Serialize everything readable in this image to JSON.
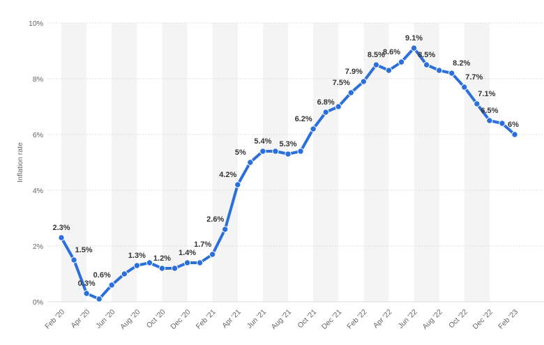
{
  "chart_data": {
    "type": "line",
    "ylabel": "Inflation rate",
    "xlabel": "",
    "ylim": [
      0,
      10
    ],
    "y_ticks": [
      0,
      2,
      4,
      6,
      8,
      10
    ],
    "y_tick_labels": [
      "0%",
      "2%",
      "4%",
      "6%",
      "8%",
      "10%"
    ],
    "x_tick_labels": [
      "Feb '20",
      "Apr '20",
      "Jun '20",
      "Aug '20",
      "Oct '20",
      "Dec '20",
      "Feb '21",
      "Apr '21",
      "Jun '21",
      "Aug '21",
      "Oct '21",
      "Dec '21",
      "Feb '22",
      "Apr '22",
      "Jun '22",
      "Aug '22",
      "Oct '22",
      "Dec '22",
      "Feb '23"
    ],
    "grid": "alternating vertical bands",
    "colors": {
      "line": "#2a6fdb",
      "band": "#f4f4f4"
    },
    "series": [
      {
        "x": [
          "Feb '20",
          "Mar '20",
          "Apr '20",
          "May '20",
          "Jun '20",
          "Jul '20",
          "Aug '20",
          "Sep '20",
          "Oct '20",
          "Nov '20",
          "Dec '20",
          "Jan '21",
          "Feb '21",
          "Mar '21",
          "Apr '21",
          "May '21",
          "Jun '21",
          "Jul '21",
          "Aug '21",
          "Sep '21",
          "Oct '21",
          "Nov '21",
          "Dec '21",
          "Jan '22",
          "Feb '22",
          "Mar '22",
          "Apr '22",
          "May '22",
          "Jun '22",
          "Jul '22",
          "Aug '22",
          "Sep '22",
          "Oct '22",
          "Nov '22",
          "Dec '22",
          "Jan '23",
          "Feb '23"
        ],
        "values": [
          2.3,
          1.5,
          0.3,
          0.1,
          0.6,
          1.0,
          1.3,
          1.4,
          1.2,
          1.2,
          1.4,
          1.4,
          1.7,
          2.6,
          4.2,
          5.0,
          5.4,
          5.4,
          5.3,
          5.4,
          6.2,
          6.8,
          7.0,
          7.5,
          7.9,
          8.5,
          8.3,
          8.6,
          9.1,
          8.5,
          8.3,
          8.2,
          7.7,
          7.1,
          6.5,
          6.4,
          6.0
        ],
        "labels": [
          "2.3%",
          "1.5%",
          "0.3%",
          "",
          "0.6%",
          "",
          "1.3%",
          "",
          "1.2%",
          "",
          "1.4%",
          "",
          "1.7%",
          "2.6%",
          "4.2%",
          "5%",
          "5.4%",
          "",
          "5.3%",
          "",
          "6.2%",
          "6.8%",
          "",
          "7.5%",
          "7.9%",
          "8.5%",
          "",
          "8.6%",
          "9.1%",
          "8.5%",
          "",
          "8.2%",
          "7.7%",
          "7.1%",
          "6.5%",
          "",
          "6%"
        ]
      }
    ]
  }
}
